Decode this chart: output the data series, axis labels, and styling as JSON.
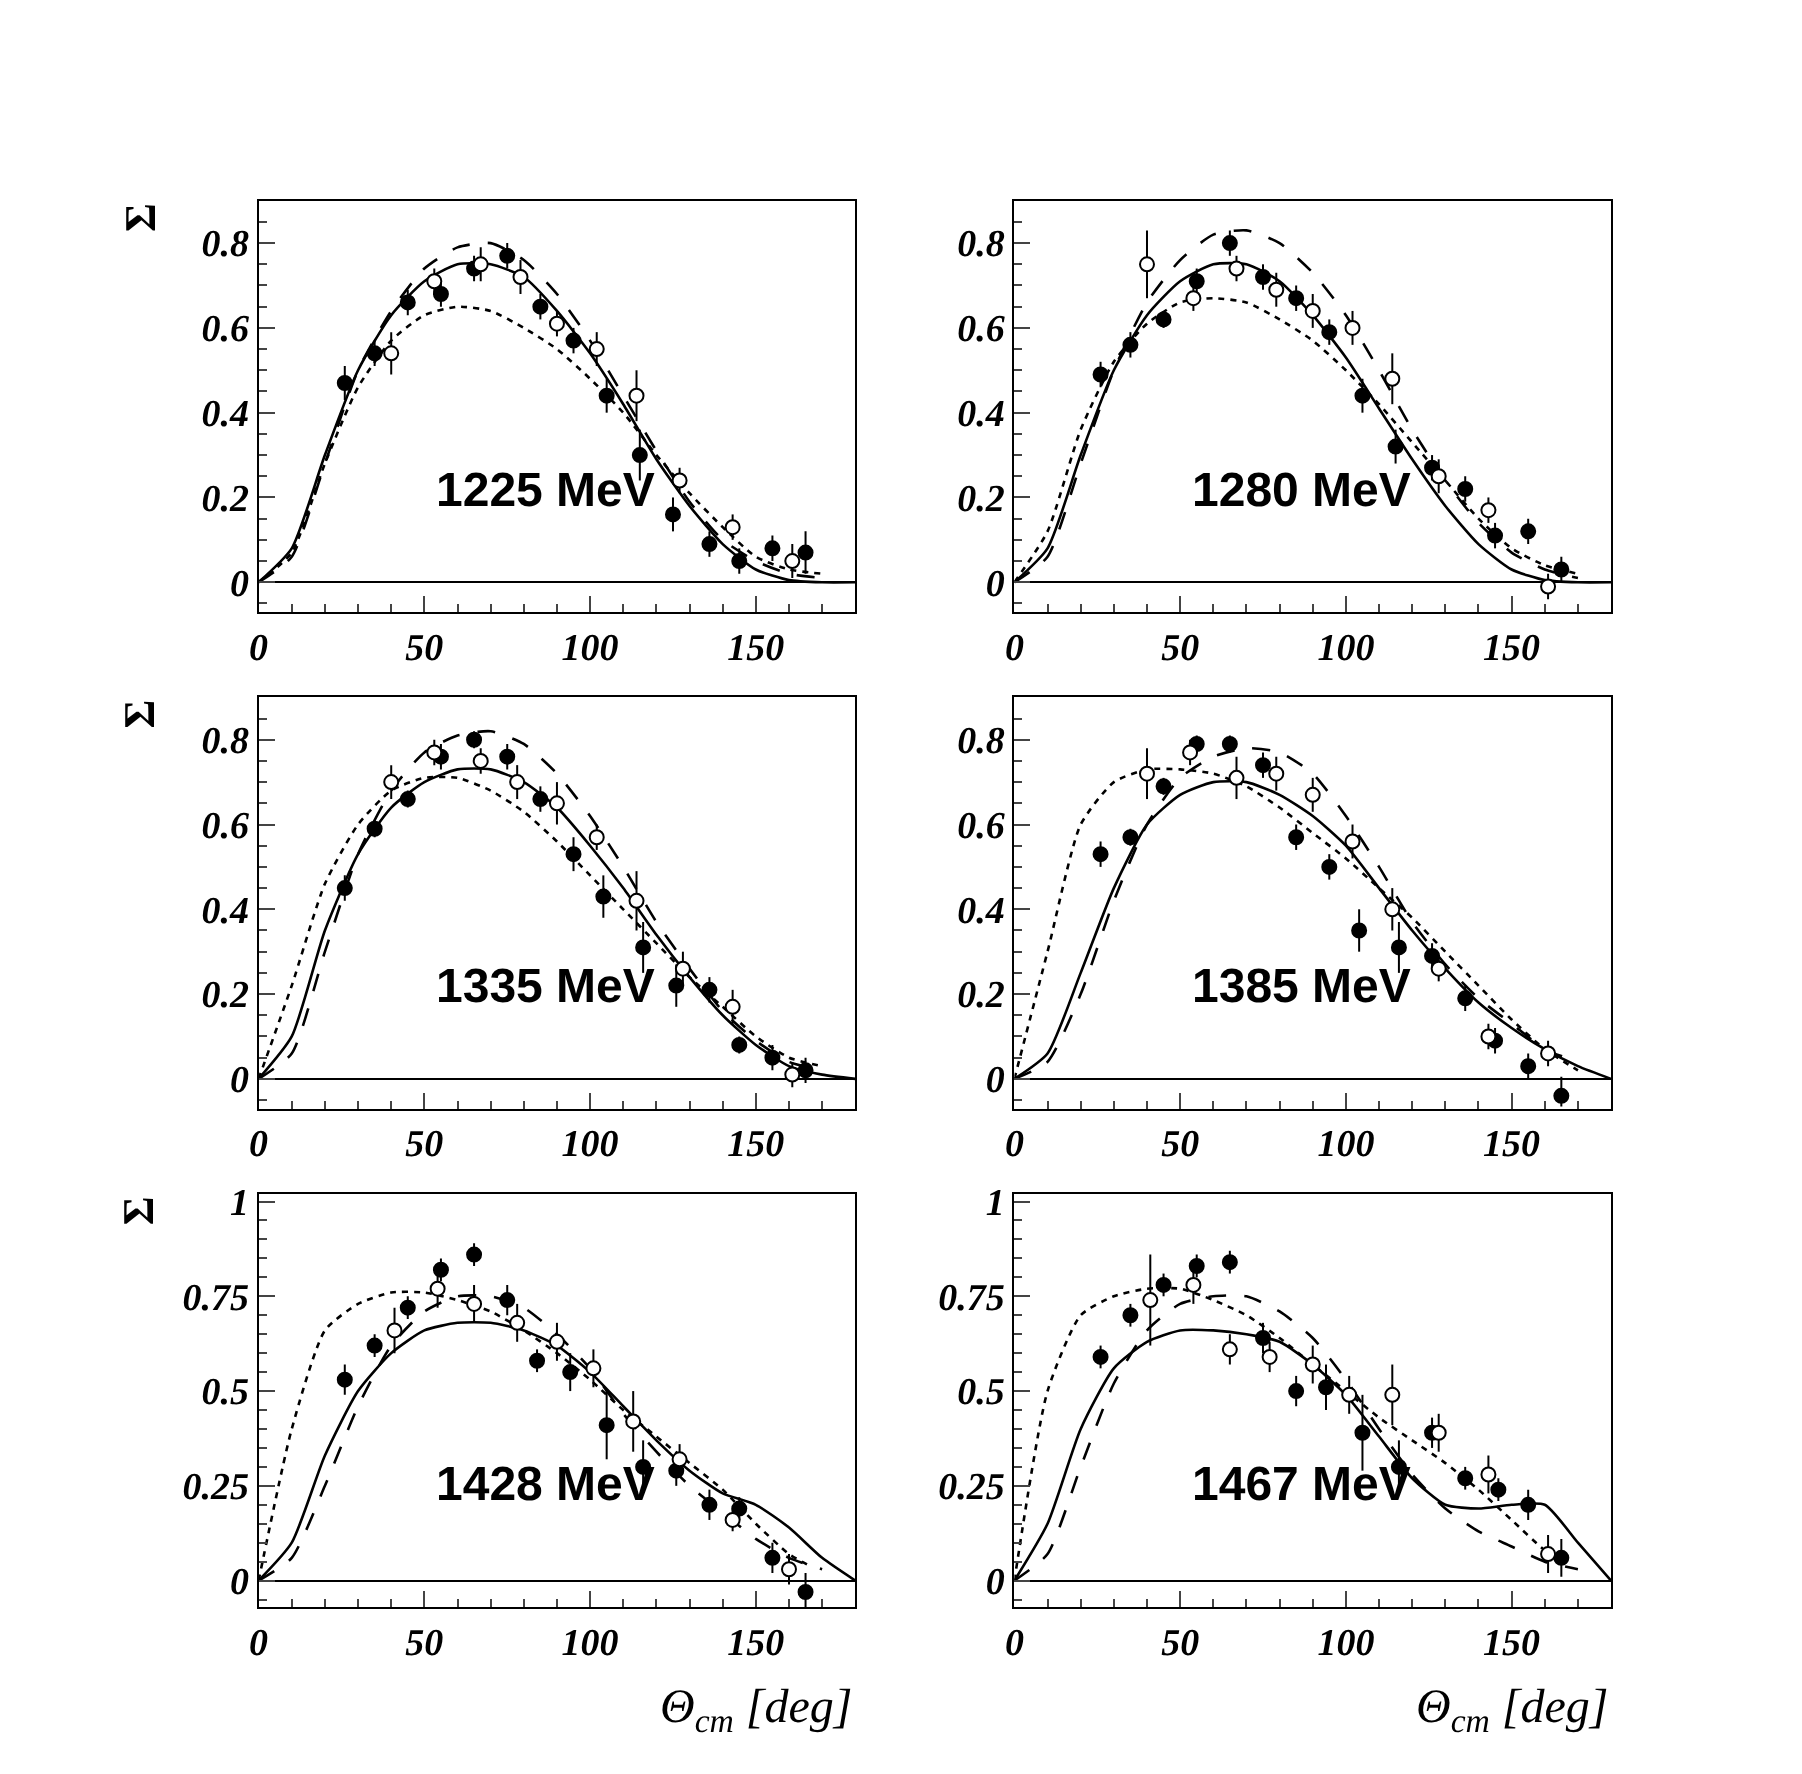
{
  "chart_data": [
    {
      "type": "scatter",
      "annotations": [
        "1225 MeV"
      ],
      "ylabel": "Σ",
      "xlim": [
        0,
        180
      ],
      "xticks": [
        0,
        50,
        100,
        150
      ],
      "ylim": [
        -0.07,
        0.9
      ],
      "yticks": [
        0,
        0.2,
        0.4,
        0.6,
        0.8
      ],
      "series": [
        {
          "type": "line",
          "line_style": "solid",
          "color": "#000000",
          "x": [
            0,
            10,
            20,
            30,
            40,
            50,
            60,
            70,
            80,
            90,
            100,
            110,
            120,
            130,
            140,
            150,
            160,
            170,
            180
          ],
          "values": [
            0,
            0.08,
            0.3,
            0.5,
            0.63,
            0.71,
            0.75,
            0.75,
            0.72,
            0.64,
            0.54,
            0.42,
            0.29,
            0.18,
            0.09,
            0.03,
            0.005,
            0,
            0
          ]
        },
        {
          "type": "line",
          "line_style": "dashed",
          "color": "#000000",
          "x": [
            0,
            10,
            20,
            30,
            40,
            50,
            60,
            70,
            80,
            90,
            100,
            110,
            120,
            130,
            140,
            150,
            160,
            170
          ],
          "values": [
            0,
            0.06,
            0.28,
            0.5,
            0.64,
            0.74,
            0.79,
            0.8,
            0.76,
            0.68,
            0.57,
            0.44,
            0.31,
            0.19,
            0.1,
            0.05,
            0.02,
            0.01
          ]
        },
        {
          "type": "line",
          "line_style": "dotted",
          "color": "#000000",
          "x": [
            0,
            10,
            20,
            30,
            40,
            50,
            60,
            70,
            80,
            90,
            100,
            110,
            120,
            130,
            140,
            150,
            160,
            170
          ],
          "values": [
            0,
            0.07,
            0.28,
            0.46,
            0.57,
            0.63,
            0.65,
            0.64,
            0.6,
            0.55,
            0.48,
            0.4,
            0.3,
            0.21,
            0.13,
            0.06,
            0.03,
            0.02
          ]
        },
        {
          "type": "scatter",
          "marker": "circle",
          "color": "#000000",
          "x": [
            26,
            35,
            45,
            55,
            65,
            75,
            85,
            95,
            105,
            115,
            125,
            136,
            145,
            155,
            165
          ],
          "values": [
            0.47,
            0.54,
            0.66,
            0.68,
            0.74,
            0.77,
            0.65,
            0.57,
            0.44,
            0.3,
            0.16,
            0.09,
            0.05,
            0.08,
            0.07
          ],
          "errors": [
            0.04,
            0.03,
            0.03,
            0.03,
            0.03,
            0.03,
            0.03,
            0.03,
            0.04,
            0.06,
            0.04,
            0.03,
            0.03,
            0.03,
            0.05
          ]
        },
        {
          "type": "scatter",
          "marker": "circle",
          "color": "#ffffff",
          "x": [
            40,
            53,
            67,
            79,
            90,
            102,
            114,
            127,
            143,
            161
          ],
          "values": [
            0.54,
            0.71,
            0.75,
            0.72,
            0.61,
            0.55,
            0.44,
            0.24,
            0.13,
            0.05
          ],
          "errors": [
            0.05,
            0.03,
            0.04,
            0.04,
            0.03,
            0.04,
            0.06,
            0.03,
            0.03,
            0.04
          ]
        }
      ]
    },
    {
      "type": "scatter",
      "annotations": [
        "1280 MeV"
      ],
      "xlim": [
        0,
        180
      ],
      "xticks": [
        0,
        50,
        100,
        150
      ],
      "ylim": [
        -0.07,
        0.9
      ],
      "yticks": [
        0,
        0.2,
        0.4,
        0.6,
        0.8
      ],
      "series": [
        {
          "type": "line",
          "line_style": "solid",
          "color": "#000000",
          "x": [
            0,
            10,
            20,
            30,
            40,
            50,
            60,
            70,
            80,
            90,
            100,
            110,
            120,
            130,
            140,
            150,
            160,
            170,
            180
          ],
          "values": [
            0,
            0.08,
            0.3,
            0.5,
            0.63,
            0.71,
            0.75,
            0.75,
            0.71,
            0.63,
            0.53,
            0.41,
            0.29,
            0.18,
            0.09,
            0.03,
            0.005,
            0,
            0
          ]
        },
        {
          "type": "line",
          "line_style": "dashed",
          "color": "#000000",
          "x": [
            0,
            10,
            20,
            30,
            40,
            50,
            60,
            70,
            80,
            90,
            100,
            110,
            120,
            130,
            140,
            150,
            160,
            170
          ],
          "values": [
            0,
            0.06,
            0.28,
            0.5,
            0.66,
            0.76,
            0.82,
            0.83,
            0.8,
            0.73,
            0.63,
            0.5,
            0.36,
            0.24,
            0.14,
            0.07,
            0.03,
            0.01
          ]
        },
        {
          "type": "line",
          "line_style": "dotted",
          "color": "#000000",
          "x": [
            0,
            10,
            20,
            30,
            40,
            50,
            60,
            70,
            80,
            90,
            100,
            110,
            120,
            130,
            140,
            150,
            160,
            170
          ],
          "values": [
            0,
            0.12,
            0.36,
            0.52,
            0.61,
            0.66,
            0.67,
            0.66,
            0.62,
            0.57,
            0.5,
            0.42,
            0.33,
            0.24,
            0.15,
            0.08,
            0.04,
            0.02
          ]
        },
        {
          "type": "scatter",
          "marker": "circle",
          "color": "#000000",
          "x": [
            26,
            35,
            45,
            55,
            65,
            75,
            85,
            95,
            105,
            115,
            126,
            136,
            145,
            155,
            165
          ],
          "values": [
            0.49,
            0.56,
            0.62,
            0.71,
            0.8,
            0.72,
            0.67,
            0.59,
            0.44,
            0.32,
            0.27,
            0.22,
            0.11,
            0.12,
            0.03
          ],
          "errors": [
            0.03,
            0.03,
            0.02,
            0.03,
            0.03,
            0.03,
            0.03,
            0.03,
            0.04,
            0.04,
            0.03,
            0.03,
            0.03,
            0.03,
            0.03
          ]
        },
        {
          "type": "scatter",
          "marker": "circle",
          "color": "#ffffff",
          "x": [
            40,
            54,
            67,
            79,
            90,
            102,
            114,
            128,
            143,
            161
          ],
          "values": [
            0.75,
            0.67,
            0.74,
            0.69,
            0.64,
            0.6,
            0.48,
            0.25,
            0.17,
            -0.01
          ],
          "errors": [
            0.08,
            0.03,
            0.03,
            0.04,
            0.04,
            0.04,
            0.06,
            0.04,
            0.03,
            0.03
          ]
        }
      ]
    },
    {
      "type": "scatter",
      "annotations": [
        "1335 MeV"
      ],
      "ylabel": "Σ",
      "xlim": [
        0,
        180
      ],
      "xticks": [
        0,
        50,
        100,
        150
      ],
      "ylim": [
        -0.07,
        0.9
      ],
      "yticks": [
        0,
        0.2,
        0.4,
        0.6,
        0.8
      ],
      "series": [
        {
          "type": "line",
          "line_style": "solid",
          "color": "#000000",
          "x": [
            0,
            10,
            20,
            30,
            40,
            50,
            60,
            70,
            80,
            90,
            100,
            110,
            120,
            130,
            140,
            150,
            160,
            170,
            180
          ],
          "values": [
            0,
            0.1,
            0.35,
            0.53,
            0.64,
            0.7,
            0.73,
            0.73,
            0.7,
            0.64,
            0.55,
            0.45,
            0.34,
            0.24,
            0.15,
            0.08,
            0.03,
            0.01,
            0
          ]
        },
        {
          "type": "line",
          "line_style": "dashed",
          "color": "#000000",
          "x": [
            0,
            10,
            20,
            30,
            40,
            50,
            60,
            70,
            80,
            90,
            100,
            110,
            120,
            130,
            140,
            150,
            160,
            170
          ],
          "values": [
            0,
            0.06,
            0.3,
            0.53,
            0.68,
            0.77,
            0.81,
            0.82,
            0.79,
            0.72,
            0.62,
            0.5,
            0.37,
            0.26,
            0.16,
            0.09,
            0.04,
            0.02
          ]
        },
        {
          "type": "line",
          "line_style": "dotted",
          "color": "#000000",
          "x": [
            0,
            10,
            20,
            30,
            40,
            50,
            60,
            70,
            80,
            90,
            100,
            110,
            120,
            130,
            140,
            150,
            160,
            170
          ],
          "values": [
            0,
            0.22,
            0.46,
            0.6,
            0.68,
            0.71,
            0.71,
            0.68,
            0.63,
            0.56,
            0.48,
            0.4,
            0.32,
            0.24,
            0.17,
            0.1,
            0.05,
            0.03
          ]
        },
        {
          "type": "scatter",
          "marker": "circle",
          "color": "#000000",
          "x": [
            26,
            35,
            45,
            55,
            65,
            75,
            85,
            95,
            104,
            116,
            126,
            136,
            145,
            155,
            165
          ],
          "values": [
            0.45,
            0.59,
            0.66,
            0.76,
            0.8,
            0.76,
            0.66,
            0.53,
            0.43,
            0.31,
            0.22,
            0.21,
            0.08,
            0.05,
            0.02
          ],
          "errors": [
            0.03,
            0.02,
            0.02,
            0.03,
            0.02,
            0.03,
            0.03,
            0.04,
            0.05,
            0.06,
            0.05,
            0.03,
            0.02,
            0.03,
            0.03
          ]
        },
        {
          "type": "scatter",
          "marker": "circle",
          "color": "#ffffff",
          "x": [
            40,
            53,
            67,
            78,
            90,
            102,
            114,
            128,
            143,
            161
          ],
          "values": [
            0.7,
            0.77,
            0.75,
            0.7,
            0.65,
            0.57,
            0.42,
            0.26,
            0.17,
            0.01
          ],
          "errors": [
            0.04,
            0.03,
            0.03,
            0.04,
            0.05,
            0.03,
            0.07,
            0.04,
            0.04,
            0.03
          ]
        }
      ]
    },
    {
      "type": "scatter",
      "annotations": [
        "1385 MeV"
      ],
      "xlim": [
        0,
        180
      ],
      "xticks": [
        0,
        50,
        100,
        150
      ],
      "ylim": [
        -0.07,
        0.9
      ],
      "yticks": [
        0,
        0.2,
        0.4,
        0.6,
        0.8
      ],
      "series": [
        {
          "type": "line",
          "line_style": "solid",
          "color": "#000000",
          "x": [
            0,
            10,
            20,
            30,
            40,
            50,
            60,
            70,
            80,
            90,
            100,
            110,
            120,
            130,
            140,
            150,
            160,
            170,
            180
          ],
          "values": [
            0,
            0.06,
            0.25,
            0.45,
            0.6,
            0.67,
            0.7,
            0.7,
            0.67,
            0.62,
            0.55,
            0.45,
            0.35,
            0.26,
            0.18,
            0.12,
            0.07,
            0.03,
            0
          ]
        },
        {
          "type": "line",
          "line_style": "dashed",
          "color": "#000000",
          "x": [
            0,
            10,
            20,
            30,
            40,
            50,
            60,
            70,
            80,
            90,
            100,
            110,
            120,
            130,
            140,
            150,
            160,
            170
          ],
          "values": [
            0,
            0.04,
            0.2,
            0.42,
            0.6,
            0.71,
            0.76,
            0.78,
            0.77,
            0.72,
            0.62,
            0.5,
            0.37,
            0.27,
            0.19,
            0.13,
            0.07,
            0.04
          ]
        },
        {
          "type": "line",
          "line_style": "dotted",
          "color": "#000000",
          "x": [
            0,
            10,
            20,
            30,
            40,
            50,
            60,
            70,
            80,
            90,
            100,
            110,
            120,
            130,
            140,
            150,
            160,
            170
          ],
          "values": [
            0,
            0.3,
            0.6,
            0.7,
            0.73,
            0.73,
            0.72,
            0.69,
            0.64,
            0.58,
            0.52,
            0.45,
            0.38,
            0.3,
            0.22,
            0.14,
            0.07,
            0.02
          ]
        },
        {
          "type": "scatter",
          "marker": "circle",
          "color": "#000000",
          "x": [
            26,
            35,
            45,
            55,
            65,
            75,
            85,
            95,
            104,
            116,
            126,
            136,
            145,
            155,
            165
          ],
          "values": [
            0.53,
            0.57,
            0.69,
            0.79,
            0.79,
            0.74,
            0.57,
            0.5,
            0.35,
            0.31,
            0.29,
            0.19,
            0.09,
            0.03,
            -0.04
          ],
          "errors": [
            0.03,
            0.02,
            0.02,
            0.02,
            0.02,
            0.03,
            0.03,
            0.03,
            0.05,
            0.06,
            0.03,
            0.03,
            0.03,
            0.03,
            [
              -0.065,
              0.005
            ]
          ]
        },
        {
          "type": "scatter",
          "marker": "circle",
          "color": "#ffffff",
          "x": [
            40,
            53,
            67,
            79,
            90,
            102,
            114,
            128,
            143,
            161
          ],
          "values": [
            0.72,
            0.77,
            0.71,
            0.72,
            0.67,
            0.56,
            0.4,
            0.26,
            0.1,
            0.06
          ],
          "errors": [
            0.06,
            0.03,
            0.05,
            0.04,
            0.04,
            0.04,
            0.05,
            0.03,
            0.03,
            0.03
          ]
        }
      ]
    },
    {
      "type": "scatter",
      "annotations": [
        "1428 MeV"
      ],
      "ylabel": "Σ",
      "xlabel": "Θ$_{cm}$ [deg]",
      "xlim": [
        0,
        180
      ],
      "xticks": [
        0,
        50,
        100,
        150
      ],
      "ylim": [
        -0.07,
        1.02
      ],
      "yticks": [
        0,
        0.25,
        0.5,
        0.75,
        1
      ],
      "series": [
        {
          "type": "line",
          "line_style": "solid",
          "color": "#000000",
          "x": [
            0,
            10,
            20,
            30,
            40,
            50,
            60,
            70,
            80,
            90,
            100,
            110,
            120,
            130,
            140,
            150,
            160,
            170,
            180
          ],
          "values": [
            0,
            0.1,
            0.33,
            0.5,
            0.6,
            0.66,
            0.68,
            0.68,
            0.66,
            0.62,
            0.55,
            0.46,
            0.37,
            0.29,
            0.23,
            0.2,
            0.14,
            0.06,
            0
          ]
        },
        {
          "type": "line",
          "line_style": "dashed",
          "color": "#000000",
          "x": [
            0,
            10,
            20,
            30,
            40,
            50,
            60,
            70,
            80,
            90,
            100,
            110,
            120,
            130,
            140,
            150,
            160,
            170
          ],
          "values": [
            0,
            0.06,
            0.25,
            0.46,
            0.62,
            0.71,
            0.75,
            0.75,
            0.72,
            0.65,
            0.56,
            0.44,
            0.34,
            0.25,
            0.18,
            0.11,
            0.06,
            0.03
          ]
        },
        {
          "type": "line",
          "line_style": "dotted",
          "color": "#000000",
          "x": [
            0,
            10,
            20,
            30,
            40,
            50,
            60,
            70,
            80,
            90,
            100,
            110,
            120,
            130,
            140,
            150,
            160,
            166
          ],
          "values": [
            0,
            0.4,
            0.66,
            0.73,
            0.76,
            0.76,
            0.74,
            0.71,
            0.66,
            0.6,
            0.53,
            0.45,
            0.38,
            0.31,
            0.24,
            0.15,
            0.07,
            0.04
          ]
        },
        {
          "type": "scatter",
          "marker": "circle",
          "color": "#000000",
          "x": [
            26,
            35,
            45,
            55,
            65,
            75,
            84,
            94,
            105,
            116,
            126,
            136,
            145,
            155,
            165
          ],
          "values": [
            0.53,
            0.62,
            0.72,
            0.82,
            0.86,
            0.74,
            0.58,
            0.55,
            0.41,
            0.3,
            0.29,
            0.2,
            0.19,
            0.06,
            -0.03
          ],
          "errors": [
            0.04,
            0.03,
            0.03,
            0.03,
            0.03,
            0.04,
            0.03,
            0.05,
            0.09,
            0.07,
            0.04,
            0.04,
            0.03,
            0.04,
            0.05
          ]
        },
        {
          "type": "scatter",
          "marker": "circle",
          "color": "#ffffff",
          "x": [
            41,
            54,
            65,
            78,
            90,
            101,
            113,
            127,
            143,
            160
          ],
          "values": [
            0.66,
            0.77,
            0.73,
            0.68,
            0.63,
            0.56,
            0.42,
            0.32,
            0.16,
            0.03
          ],
          "errors": [
            0.06,
            0.05,
            0.05,
            0.05,
            0.05,
            0.05,
            0.08,
            0.04,
            0.03,
            0.04
          ]
        }
      ]
    },
    {
      "type": "scatter",
      "annotations": [
        "1467 MeV"
      ],
      "xlabel": "Θ$_{cm}$ [deg]",
      "xlim": [
        0,
        180
      ],
      "xticks": [
        0,
        50,
        100,
        150
      ],
      "ylim": [
        -0.07,
        1.02
      ],
      "yticks": [
        0,
        0.25,
        0.5,
        0.75,
        1
      ],
      "series": [
        {
          "type": "line",
          "line_style": "solid",
          "color": "#000000",
          "x": [
            0,
            10,
            20,
            30,
            40,
            50,
            60,
            70,
            80,
            90,
            100,
            110,
            120,
            130,
            140,
            150,
            160,
            170,
            180
          ],
          "values": [
            0,
            0.15,
            0.4,
            0.56,
            0.63,
            0.66,
            0.66,
            0.65,
            0.63,
            0.57,
            0.49,
            0.38,
            0.27,
            0.2,
            0.19,
            0.2,
            0.2,
            0.1,
            0
          ]
        },
        {
          "type": "line",
          "line_style": "dashed",
          "color": "#000000",
          "x": [
            0,
            10,
            20,
            30,
            40,
            50,
            60,
            70,
            80,
            90,
            100,
            110,
            120,
            130,
            140,
            150,
            160,
            170
          ],
          "values": [
            0,
            0.07,
            0.3,
            0.52,
            0.66,
            0.73,
            0.75,
            0.75,
            0.71,
            0.64,
            0.53,
            0.4,
            0.28,
            0.19,
            0.13,
            0.09,
            0.05,
            0.03
          ]
        },
        {
          "type": "line",
          "line_style": "dotted",
          "color": "#000000",
          "x": [
            0,
            10,
            20,
            30,
            40,
            50,
            60,
            70,
            80,
            90,
            100,
            110,
            120,
            130,
            140,
            150,
            160,
            166
          ],
          "values": [
            0,
            0.5,
            0.7,
            0.75,
            0.77,
            0.77,
            0.74,
            0.7,
            0.64,
            0.57,
            0.5,
            0.43,
            0.37,
            0.31,
            0.24,
            0.16,
            0.08,
            0.05
          ]
        },
        {
          "type": "scatter",
          "marker": "circle",
          "color": "#000000",
          "x": [
            26,
            35,
            45,
            55,
            65,
            75,
            85,
            94,
            105,
            116,
            126,
            136,
            146,
            155,
            165
          ],
          "values": [
            0.59,
            0.7,
            0.78,
            0.83,
            0.84,
            0.64,
            0.5,
            0.51,
            0.39,
            0.3,
            0.39,
            0.27,
            0.24,
            0.2,
            0.06
          ],
          "errors": [
            0.03,
            0.03,
            0.03,
            0.03,
            0.03,
            0.04,
            0.04,
            0.06,
            0.1,
            0.07,
            0.04,
            0.03,
            0.03,
            0.04,
            0.05
          ]
        },
        {
          "type": "scatter",
          "marker": "circle",
          "color": "#ffffff",
          "x": [
            41,
            54,
            65,
            77,
            90,
            101,
            114,
            128,
            143,
            161
          ],
          "values": [
            0.74,
            0.78,
            0.61,
            0.59,
            0.57,
            0.49,
            0.49,
            0.39,
            0.28,
            0.07
          ],
          "errors": [
            0.12,
            0.05,
            0.04,
            0.04,
            0.05,
            0.05,
            0.08,
            0.05,
            0.05,
            0.05
          ]
        }
      ]
    }
  ]
}
